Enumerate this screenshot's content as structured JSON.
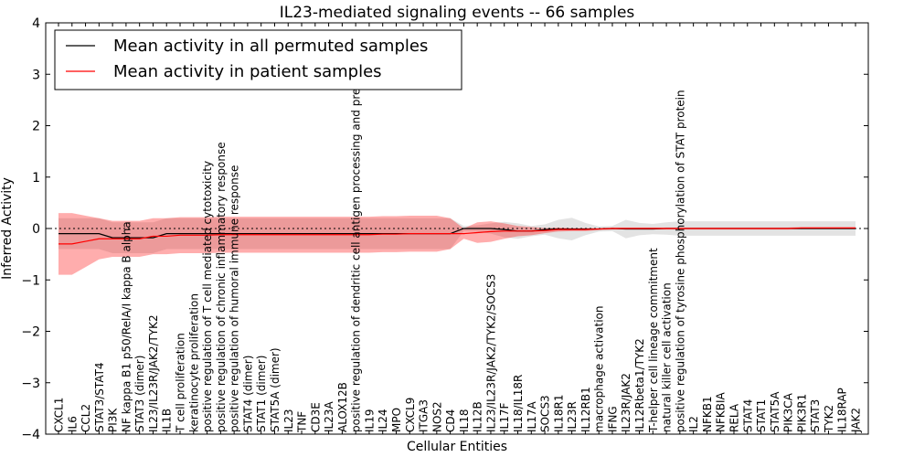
{
  "chart_data": {
    "type": "line",
    "title": "IL23-mediated signaling events -- 66 samples",
    "xlabel": "Cellular Entities",
    "ylabel": "Inferred Activity",
    "ylim": [
      -4,
      4
    ],
    "yticks": [
      -4,
      -3,
      -2,
      -1,
      0,
      1,
      2,
      3,
      4
    ],
    "ytick_labels": [
      "−4",
      "−3",
      "−2",
      "−1",
      "0",
      "1",
      "2",
      "3",
      "4"
    ],
    "legend_position": "top-left",
    "categories": [
      "CXCL1",
      "IL6",
      "CCL2",
      "STAT3/STAT4",
      "PI3K",
      "NF kappa B1 p50/RelA/I kappa B alpha",
      "STAT3 (dimer)",
      "IL23/IL23R/JAK2/TYK2",
      "IL1B",
      "T cell proliferation",
      "keratinocyte proliferation",
      "positive regulation of T cell mediated cytotoxicity",
      "positive regulation of chronic inflammatory response",
      "positive regulation of humoral immune response",
      "STAT4 (dimer)",
      "STAT1 (dimer)",
      "STAT5A (dimer)",
      "IL23",
      "TNF",
      "CD3E",
      "IL23A",
      "ALOX12B",
      "positive regulation of dendritic cell antigen processing and presentation",
      "IL19",
      "IL24",
      "MPO",
      "CXCL9",
      "ITGA3",
      "NOS2",
      "CD4",
      "IL18",
      "IL12B",
      "IL23/IL23R/JAK2/TYK2/SOCS3",
      "IL17F",
      "IL18/IL18R",
      "IL17A",
      "SOCS3",
      "IL18R1",
      "IL23R",
      "IL12RB1",
      "macrophage activation",
      "IFNG",
      "IL23R/JAK2",
      "IL12Rbeta1/TYK2",
      "T-helper cell lineage commitment",
      "natural killer cell activation",
      "positive regulation of tyrosine phosphorylation of STAT protein",
      "IL2",
      "NFKB1",
      "NFKBIA",
      "RELA",
      "STAT4",
      "STAT1",
      "STAT5A",
      "PIK3CA",
      "PIK3R1",
      "STAT3",
      "TYK2",
      "IL18RAP",
      "JAK2"
    ],
    "series": [
      {
        "name": "Mean activity in all permuted samples",
        "color": "#000000",
        "band_color": "#b0b0b0",
        "values": [
          -0.1,
          -0.1,
          -0.1,
          -0.1,
          -0.18,
          -0.18,
          -0.18,
          -0.18,
          -0.1,
          -0.1,
          -0.1,
          -0.1,
          -0.1,
          -0.1,
          -0.1,
          -0.1,
          -0.1,
          -0.1,
          -0.1,
          -0.1,
          -0.1,
          -0.1,
          -0.1,
          -0.1,
          -0.1,
          -0.1,
          -0.1,
          -0.1,
          -0.1,
          -0.1,
          0.0,
          0.0,
          0.0,
          -0.02,
          -0.05,
          -0.05,
          -0.02,
          -0.01,
          -0.01,
          -0.01,
          -0.01,
          0.0,
          -0.01,
          -0.01,
          -0.01,
          0.0,
          0.0,
          0.0,
          0.0,
          0.0,
          0.0,
          0.0,
          0.0,
          0.0,
          0.0,
          0.0,
          0.0,
          0.0,
          0.0,
          0.0
        ],
        "band": [
          0.3,
          0.3,
          0.3,
          0.3,
          0.3,
          0.3,
          0.3,
          0.3,
          0.3,
          0.3,
          0.3,
          0.3,
          0.3,
          0.3,
          0.3,
          0.3,
          0.3,
          0.3,
          0.3,
          0.3,
          0.3,
          0.3,
          0.3,
          0.3,
          0.3,
          0.3,
          0.3,
          0.3,
          0.3,
          0.3,
          0.05,
          0.06,
          0.1,
          0.15,
          0.15,
          0.1,
          0.1,
          0.18,
          0.22,
          0.12,
          0.05,
          0.05,
          0.18,
          0.12,
          0.1,
          0.12,
          0.14,
          0.14,
          0.14,
          0.14,
          0.14,
          0.14,
          0.14,
          0.14,
          0.14,
          0.14,
          0.14,
          0.14,
          0.14,
          0.14
        ]
      },
      {
        "name": "Mean activity in patient samples",
        "color": "#ff0000",
        "band_color": "#ff0000",
        "values": [
          -0.3,
          -0.3,
          -0.25,
          -0.2,
          -0.2,
          -0.2,
          -0.2,
          -0.15,
          -0.15,
          -0.13,
          -0.13,
          -0.13,
          -0.12,
          -0.12,
          -0.12,
          -0.12,
          -0.12,
          -0.12,
          -0.12,
          -0.12,
          -0.12,
          -0.12,
          -0.12,
          -0.12,
          -0.11,
          -0.11,
          -0.1,
          -0.1,
          -0.1,
          -0.1,
          -0.1,
          -0.08,
          -0.06,
          -0.05,
          -0.05,
          -0.05,
          -0.04,
          -0.02,
          -0.02,
          -0.02,
          -0.01,
          0.0,
          0.0,
          0.0,
          0.0,
          0.0,
          0.0,
          0.0,
          0.0,
          0.0,
          0.0,
          0.0,
          0.0,
          0.0,
          0.0,
          0.01,
          0.01,
          0.01,
          0.01,
          0.01
        ],
        "band": [
          0.6,
          0.6,
          0.5,
          0.4,
          0.35,
          0.35,
          0.35,
          0.35,
          0.35,
          0.35,
          0.35,
          0.35,
          0.35,
          0.35,
          0.35,
          0.35,
          0.35,
          0.35,
          0.35,
          0.35,
          0.35,
          0.35,
          0.35,
          0.35,
          0.35,
          0.35,
          0.35,
          0.35,
          0.35,
          0.3,
          0.1,
          0.2,
          0.2,
          0.15,
          0.1,
          0.08,
          0.05,
          0.04,
          0.03,
          0.03,
          0.02,
          0.02,
          0.02,
          0.02,
          0.02,
          0.02,
          0.02,
          0.02,
          0.02,
          0.02,
          0.02,
          0.02,
          0.02,
          0.02,
          0.02,
          0.02,
          0.02,
          0.02,
          0.02,
          0.02
        ]
      }
    ]
  }
}
